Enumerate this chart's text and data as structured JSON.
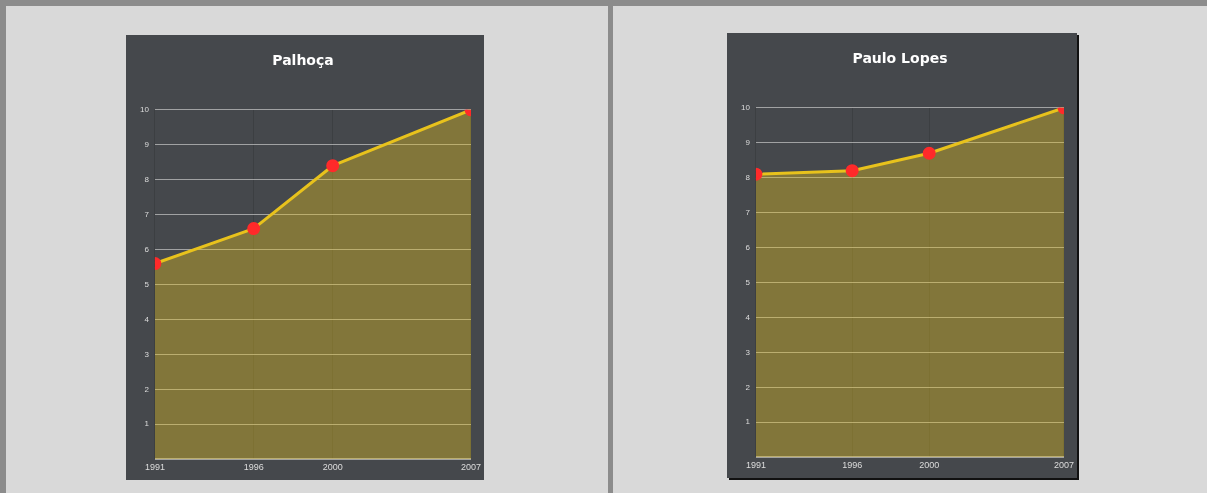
{
  "chart_data": [
    {
      "type": "area",
      "title": "Palhoça",
      "x": [
        1991,
        1996,
        2000,
        2007
      ],
      "series": [
        {
          "color": "#e8c21c",
          "values": [
            5.6,
            6.6,
            8.4,
            10
          ]
        }
      ],
      "xlim": [
        1991,
        2007
      ],
      "xticks": [
        1991,
        1996,
        2000,
        2007
      ],
      "ylim": [
        0,
        10
      ],
      "yticks": [
        {
          "value": 0,
          "label": null
        },
        1,
        2,
        3,
        4,
        5,
        6,
        7,
        8,
        9,
        10
      ],
      "grid": true,
      "marker": "circle",
      "legend": false
    },
    {
      "type": "area",
      "title": "Paulo Lopes",
      "x": [
        1991,
        1996,
        2000,
        2007
      ],
      "series": [
        {
          "color": "#e8c21c",
          "values": [
            8.1,
            8.2,
            8.7,
            10
          ]
        }
      ],
      "xlim": [
        1991,
        2007
      ],
      "xticks": [
        1991,
        1996,
        2000,
        2007
      ],
      "ylim": [
        0,
        10
      ],
      "yticks": [
        {
          "value": 0,
          "label": null
        },
        1,
        2,
        3,
        4,
        5,
        6,
        7,
        8,
        9,
        10
      ],
      "grid": true,
      "marker": "circle",
      "legend": false
    }
  ]
}
